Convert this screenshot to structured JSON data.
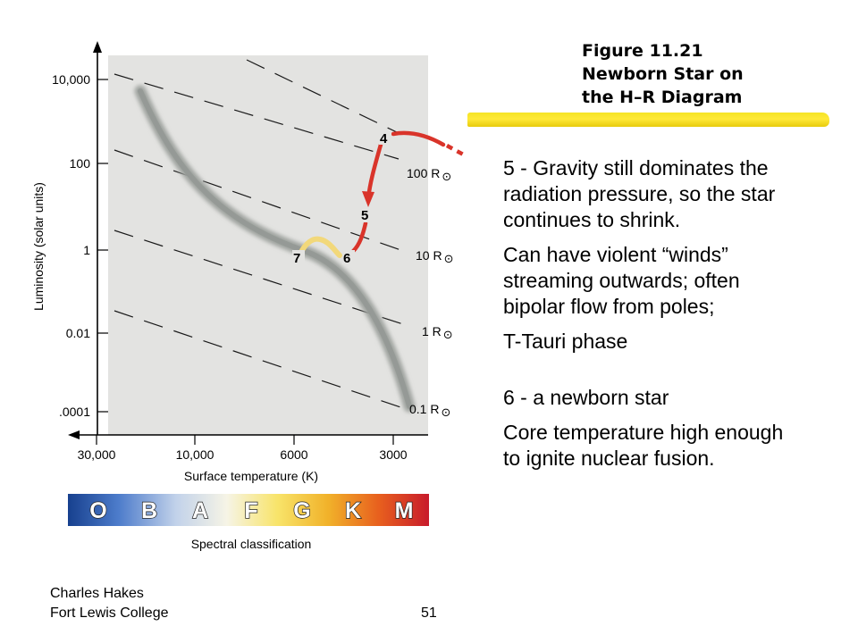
{
  "caption": {
    "line1": "Figure 11.21",
    "line2": "Newborn Star on",
    "line3": "the H–R Diagram"
  },
  "paragraphs": [
    "5 - Gravity still dominates the radiation pressure, so the star continues to shrink.",
    "Can have violent “winds” streaming outwards; often bipolar flow from poles;",
    "T-Tauri phase",
    "6 - a newborn star",
    "Core temperature high enough to ignite nuclear fusion."
  ],
  "footer": {
    "author_line1": "Charles Hakes",
    "author_line2": "Fort Lewis College",
    "page_number": "51"
  },
  "diagram": {
    "y_axis_label": "Luminosity (solar units)",
    "x_axis_label": "Surface temperature (K)",
    "y_ticks": [
      "10,000",
      "100",
      "1",
      "0.01",
      ".0001"
    ],
    "x_ticks": [
      "30,000",
      "10,000",
      "6000",
      "3000"
    ],
    "radius_labels": [
      "100 R",
      "10 R",
      "1 R",
      "0.1 R"
    ],
    "sun_symbol": "⊙",
    "track_points": [
      "4",
      "5",
      "6",
      "7"
    ],
    "spectral_title": "Spectral classification",
    "spectral_classes": [
      {
        "letter": "O",
        "color": "#1b63c6"
      },
      {
        "letter": "B",
        "color": "#6f9fdc"
      },
      {
        "letter": "A",
        "color": "#dbe3f3"
      },
      {
        "letter": "F",
        "color": "#f6f1c4"
      },
      {
        "letter": "G",
        "color": "#f4dc1c"
      },
      {
        "letter": "K",
        "color": "#f08a1a"
      },
      {
        "letter": "M",
        "color": "#d41f2d"
      }
    ],
    "colors": {
      "panel": "#e3e3e1",
      "main_sequence": "#9fa39f",
      "track_red": "#d9342a",
      "track_yellow": "#f2d87a"
    }
  }
}
